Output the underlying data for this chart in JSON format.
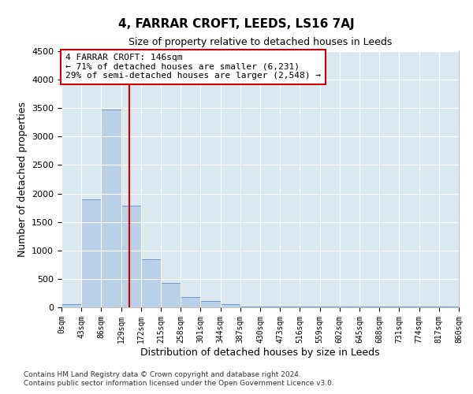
{
  "title": "4, FARRAR CROFT, LEEDS, LS16 7AJ",
  "subtitle": "Size of property relative to detached houses in Leeds",
  "xlabel": "Distribution of detached houses by size in Leeds",
  "ylabel": "Number of detached properties",
  "bar_color": "#b8d0e8",
  "bar_edge_color": "#6699cc",
  "background_color": "#dce8f0",
  "grid_color": "#ffffff",
  "vline_value": 146,
  "vline_color": "#cc0000",
  "annotation_line1": "4 FARRAR CROFT: 146sqm",
  "annotation_line2": "← 71% of detached houses are smaller (6,231)",
  "annotation_line3": "29% of semi-detached houses are larger (2,548) →",
  "annotation_box_color": "#cc0000",
  "bin_edges": [
    0,
    43,
    86,
    129,
    172,
    215,
    258,
    301,
    344,
    387,
    430,
    473,
    516,
    559,
    602,
    645,
    688,
    731,
    774,
    817,
    860
  ],
  "bin_counts": [
    60,
    1900,
    3480,
    1780,
    840,
    430,
    185,
    110,
    50,
    10,
    10,
    10,
    10,
    10,
    10,
    10,
    10,
    10,
    10,
    10
  ],
  "ylim": [
    0,
    4500
  ],
  "yticks": [
    0,
    500,
    1000,
    1500,
    2000,
    2500,
    3000,
    3500,
    4000,
    4500
  ],
  "footnote1": "Contains HM Land Registry data © Crown copyright and database right 2024.",
  "footnote2": "Contains public sector information licensed under the Open Government Licence v3.0."
}
